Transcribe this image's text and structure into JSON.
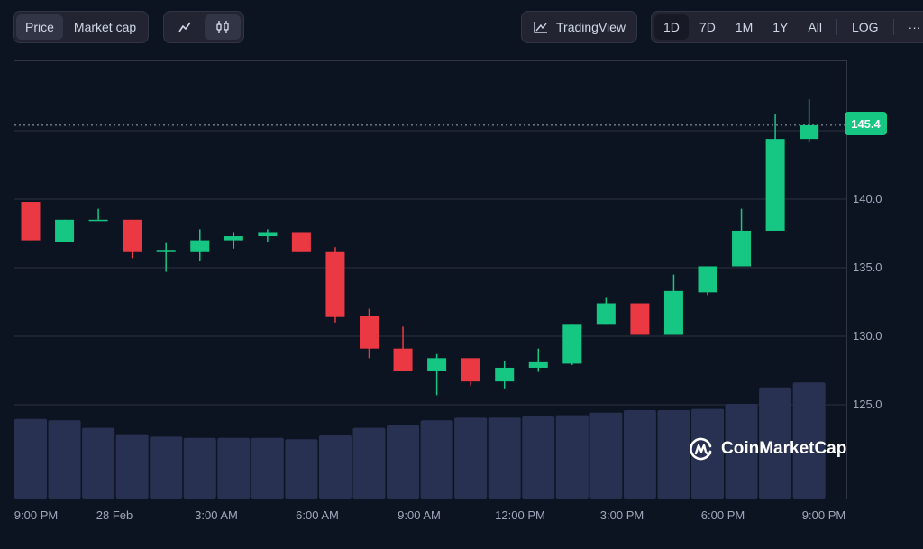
{
  "toolbar": {
    "metric_tabs": [
      {
        "label": "Price",
        "active": true
      },
      {
        "label": "Market cap",
        "active": false
      }
    ],
    "chart_types": [
      {
        "icon": "line-chart-icon",
        "active": false
      },
      {
        "icon": "candlestick-icon",
        "active": true
      }
    ],
    "tradingview_label": "TradingView",
    "ranges": [
      {
        "label": "1D",
        "active": true
      },
      {
        "label": "7D",
        "active": false
      },
      {
        "label": "1M",
        "active": false
      },
      {
        "label": "1Y",
        "active": false
      },
      {
        "label": "All",
        "active": false
      }
    ],
    "log_label": "LOG",
    "more_label": "···"
  },
  "current_price_label": "145.4",
  "watermark": "CoinMarketCap",
  "colors": {
    "up": "#16c784",
    "down": "#ea3943",
    "volume": "#283152",
    "background": "#0d1421",
    "grid": "#2a2f3e"
  },
  "chart_data": {
    "type": "candlestick",
    "title": "",
    "xlabel": "",
    "ylabel": "Price",
    "ylim": [
      120.8,
      150.4
    ],
    "y_ticks": [
      "125.0",
      "130.0",
      "135.0",
      "140.0"
    ],
    "x_ticks": [
      "9:00 PM",
      "28 Feb",
      "3:00 AM",
      "6:00 AM",
      "9:00 AM",
      "12:00 PM",
      "3:00 PM",
      "6:00 PM",
      "9:00 PM"
    ],
    "current_price": 145.4,
    "grid": true,
    "candles": [
      {
        "o": 139.8,
        "h": 139.8,
        "l": 137.0,
        "c": 137.0,
        "v": 63
      },
      {
        "o": 136.9,
        "h": 138.5,
        "l": 136.9,
        "c": 138.5,
        "v": 62
      },
      {
        "o": 138.5,
        "h": 139.3,
        "l": 138.5,
        "c": 138.5,
        "v": 56
      },
      {
        "o": 138.5,
        "h": 138.5,
        "l": 135.7,
        "c": 136.2,
        "v": 51
      },
      {
        "o": 136.2,
        "h": 136.8,
        "l": 134.7,
        "c": 136.3,
        "v": 49
      },
      {
        "o": 136.2,
        "h": 137.8,
        "l": 135.5,
        "c": 137.0,
        "v": 48
      },
      {
        "o": 137.0,
        "h": 137.6,
        "l": 136.4,
        "c": 137.3,
        "v": 48
      },
      {
        "o": 137.3,
        "h": 137.8,
        "l": 136.9,
        "c": 137.6,
        "v": 48
      },
      {
        "o": 137.6,
        "h": 137.6,
        "l": 136.2,
        "c": 136.2,
        "v": 47
      },
      {
        "o": 136.2,
        "h": 136.5,
        "l": 131.0,
        "c": 131.4,
        "v": 50
      },
      {
        "o": 131.5,
        "h": 132.0,
        "l": 128.4,
        "c": 129.1,
        "v": 56
      },
      {
        "o": 129.1,
        "h": 130.7,
        "l": 127.5,
        "c": 127.5,
        "v": 58
      },
      {
        "o": 127.5,
        "h": 128.7,
        "l": 125.7,
        "c": 128.4,
        "v": 62
      },
      {
        "o": 128.4,
        "h": 128.4,
        "l": 126.4,
        "c": 126.7,
        "v": 64
      },
      {
        "o": 126.7,
        "h": 128.2,
        "l": 126.2,
        "c": 127.7,
        "v": 64
      },
      {
        "o": 127.7,
        "h": 129.1,
        "l": 127.4,
        "c": 128.1,
        "v": 65
      },
      {
        "o": 128.0,
        "h": 130.9,
        "l": 127.9,
        "c": 130.9,
        "v": 66
      },
      {
        "o": 130.9,
        "h": 132.8,
        "l": 130.9,
        "c": 132.4,
        "v": 68
      },
      {
        "o": 132.4,
        "h": 132.4,
        "l": 130.1,
        "c": 130.1,
        "v": 70
      },
      {
        "o": 130.1,
        "h": 134.5,
        "l": 130.1,
        "c": 133.3,
        "v": 70
      },
      {
        "o": 133.2,
        "h": 135.1,
        "l": 133.0,
        "c": 135.1,
        "v": 71
      },
      {
        "o": 135.1,
        "h": 139.3,
        "l": 135.1,
        "c": 137.7,
        "v": 75
      },
      {
        "o": 137.7,
        "h": 146.2,
        "l": 137.7,
        "c": 144.4,
        "v": 88
      },
      {
        "o": 144.4,
        "h": 147.3,
        "l": 144.2,
        "c": 145.4,
        "v": 92
      }
    ]
  }
}
